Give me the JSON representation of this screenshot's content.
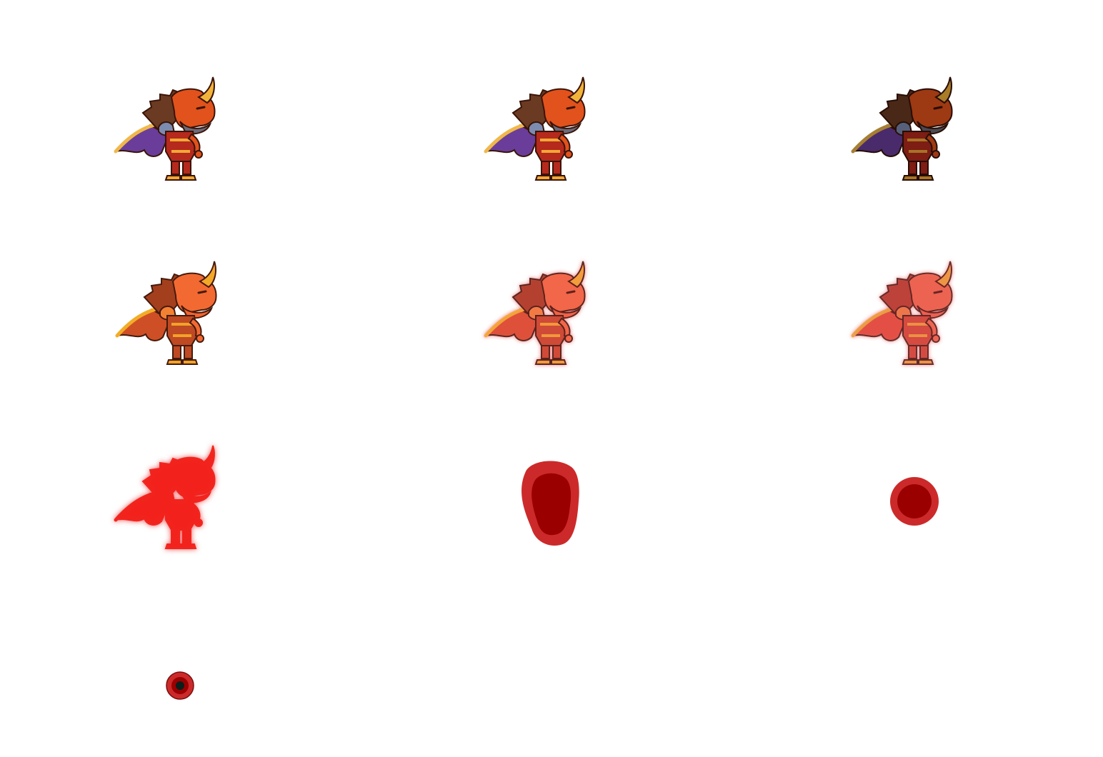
{
  "sprite_sheet": {
    "character": "horned-red-dragon-knight",
    "animation": "death-dissolve",
    "grid": {
      "columns": 3,
      "rows": 4
    },
    "frame_count": 10,
    "palette": {
      "skin": "#e2521c",
      "skin_shade": "#b83a14",
      "mane": "#6b3a22",
      "horn": "#f2b33a",
      "wing": "#6a3d9a",
      "wing_frame": "#f0b84a",
      "armor": "#b52a1c",
      "armor_trim": "#f2a838",
      "spike": "#7c8bb0",
      "outline": "#3a1408",
      "tint_red": "#d4221e",
      "blob_outer": "#cc2a2a",
      "blob_inner": "#9b0000",
      "core_dark": "#0b1f1c"
    },
    "frames": [
      {
        "stage": "normal",
        "color_tint": 0.0
      },
      {
        "stage": "normal-walk",
        "color_tint": 0.0
      },
      {
        "stage": "tinting",
        "color_tint": 0.3
      },
      {
        "stage": "tinting",
        "color_tint": 0.5
      },
      {
        "stage": "glowing",
        "color_tint": 0.65
      },
      {
        "stage": "glowing",
        "color_tint": 0.8
      },
      {
        "stage": "silhouette",
        "color_tint": 1.0
      },
      {
        "stage": "blob",
        "color_tint": 1.0
      },
      {
        "stage": "orb",
        "color_tint": 1.0
      },
      {
        "stage": "core",
        "color_tint": 1.0
      }
    ]
  }
}
